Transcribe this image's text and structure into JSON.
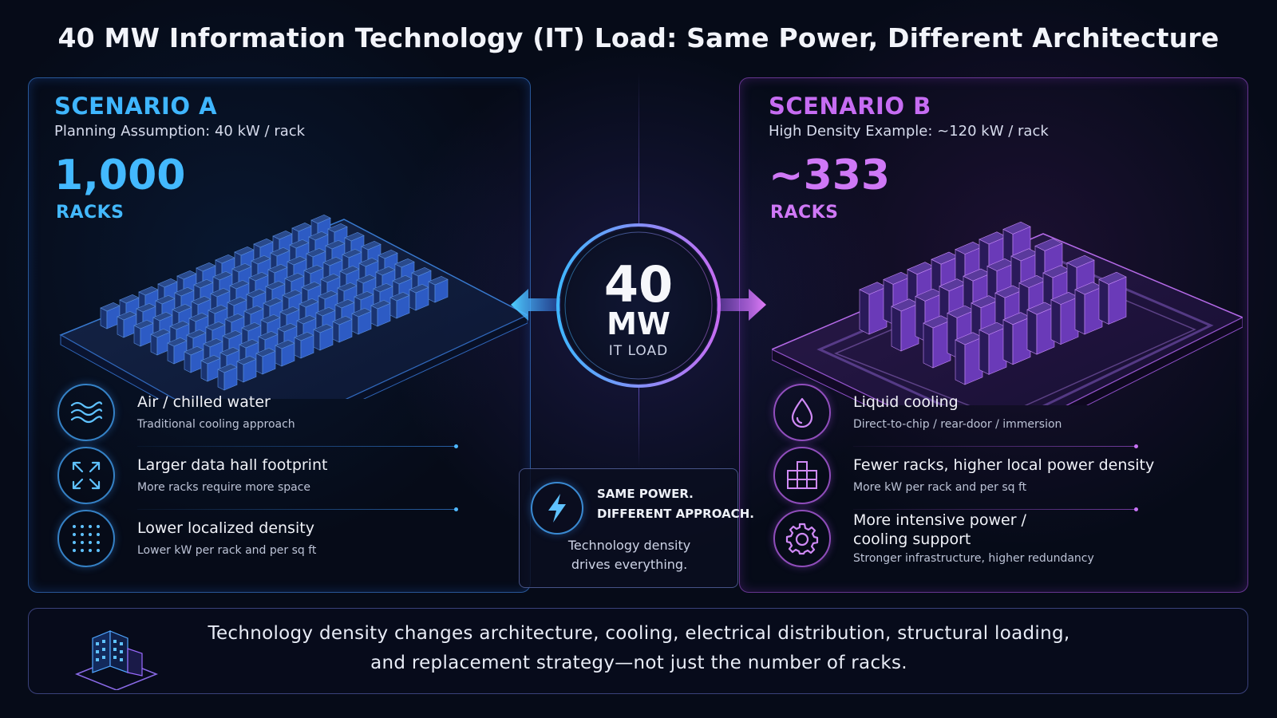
{
  "title": "40 MW Information Technology (IT) Load: Same Power, Different Architecture",
  "colors": {
    "scenario_a": "#43b9ff",
    "scenario_b": "#cf78f6",
    "background": "#060b18"
  },
  "scenario_a": {
    "title": "SCENARIO A",
    "subtitle": "Planning Assumption: 40 kW / rack",
    "count": "1,000",
    "unit": "RACKS",
    "features": [
      {
        "icon": "waves-icon",
        "title": "Air / chilled water",
        "subtitle": "Traditional cooling approach"
      },
      {
        "icon": "expand-arrows-icon",
        "title": "Larger data hall footprint",
        "subtitle": "More racks require more space"
      },
      {
        "icon": "dot-grid-icon",
        "title": "Lower localized density",
        "subtitle": "Lower kW per rack and per sq ft"
      }
    ]
  },
  "scenario_b": {
    "title": "SCENARIO B",
    "subtitle": "High Density Example: ~120 kW / rack",
    "count": "~333",
    "unit": "RACKS",
    "features": [
      {
        "icon": "droplet-icon",
        "title": "Liquid cooling",
        "subtitle": "Direct-to-chip / rear-door / immersion"
      },
      {
        "icon": "stacked-blocks-icon",
        "title": "Fewer racks, higher local power density",
        "subtitle": "More kW per rack and per sq ft"
      },
      {
        "icon": "gear-icon",
        "title_line1": "More intensive power /",
        "title_line2": "cooling support",
        "subtitle": "Stronger infrastructure, higher redundancy"
      }
    ]
  },
  "center": {
    "value": "40",
    "unit": "MW",
    "label": "IT LOAD",
    "box": {
      "icon": "lightning-icon",
      "line1": "SAME POWER.",
      "line2": "DIFFERENT APPROACH.",
      "sub1": "Technology density",
      "sub2": "drives everything."
    }
  },
  "footer": {
    "icon": "building-icon",
    "line1": "Technology density changes architecture, cooling, electrical distribution, structural loading,",
    "line2": "and replacement strategy—not just the number of racks."
  }
}
